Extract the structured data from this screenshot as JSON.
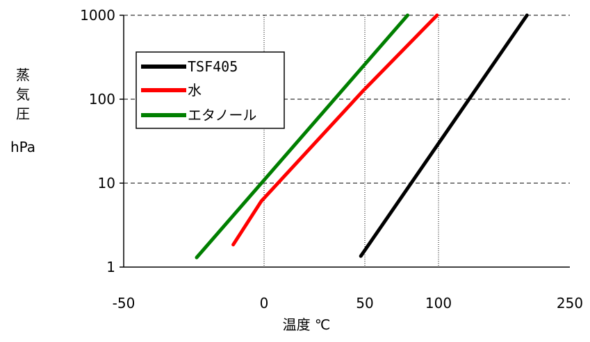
{
  "chart_data": {
    "type": "line",
    "xlabel": "温度 ℃",
    "ylabel": [
      "蒸",
      "気",
      "圧",
      "hPa"
    ],
    "y_scale": "log",
    "xlim": [
      -50,
      250
    ],
    "ylim": [
      1,
      1000
    ],
    "x_ticks": [
      "-50",
      "0",
      "50",
      "100",
      "250"
    ],
    "x_tick_values": [
      -50,
      0,
      50,
      100,
      250
    ],
    "y_ticks": [
      "1",
      "10",
      "100",
      "1000"
    ],
    "y_tick_values": [
      1,
      10,
      100,
      1000
    ],
    "vertical_gridlines_at": [
      0,
      50,
      100
    ],
    "horizontal_gridlines": "dashed",
    "legend_placement": "upper-left",
    "series": [
      {
        "name": "TSF405",
        "color": "#000000",
        "x": [
          48,
          201
        ],
        "y": [
          1.35,
          1000
        ]
      },
      {
        "name": "水",
        "color": "#ff0000",
        "x": [
          -11,
          -1,
          49,
          99
        ],
        "y": [
          1.85,
          6.1,
          125,
          1000
        ]
      },
      {
        "name": "エタノール",
        "color": "#007f00",
        "x": [
          -24,
          79
        ],
        "y": [
          1.3,
          1000
        ]
      }
    ]
  }
}
